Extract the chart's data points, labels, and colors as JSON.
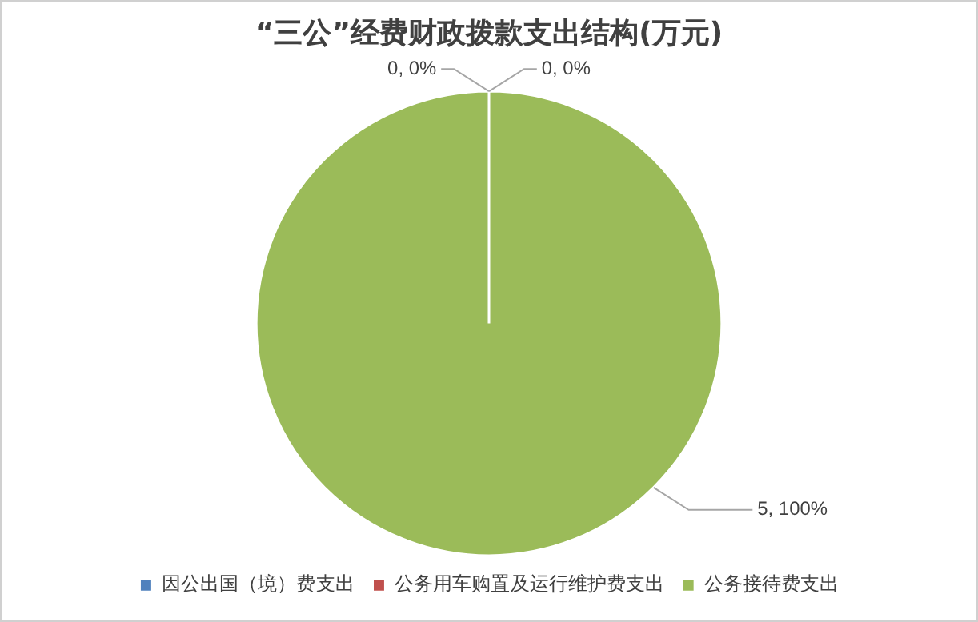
{
  "chart_data": {
    "type": "pie",
    "title": "“三公”经费财政拨款支出结构(万元)",
    "categories": [
      "因公出国（境）费支出",
      "公务用车购置及运行维护费支出",
      "公务接待费支出"
    ],
    "values": [
      0,
      0,
      5
    ],
    "colors": [
      "#4f81bd",
      "#c0504d",
      "#9bbb59"
    ],
    "value_labels": [
      "0, 0%",
      "0, 0%",
      "5, 100%"
    ],
    "legend": "bottom"
  }
}
